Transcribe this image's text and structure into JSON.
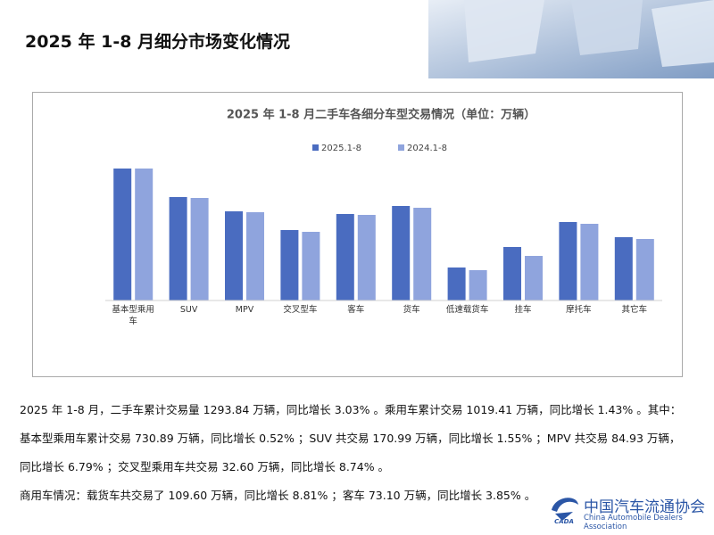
{
  "header": {
    "title": "2025 年 1-8 月细分市场变化情况"
  },
  "chart_data": {
    "type": "bar",
    "title": "2025 年 1-8 月二手车各细分车型交易情况（单位：万辆）",
    "categories": [
      "基本型乘用车",
      "SUV",
      "MPV",
      "交叉型车",
      "客车",
      "货车",
      "低速载货车",
      "挂车",
      "摩托车",
      "其它车"
    ],
    "series": [
      {
        "name": "2025.1-8",
        "color": "#4a6cc0",
        "values": [
          148,
          116,
          100,
          79,
          97,
          106,
          37,
          60,
          88,
          71
        ]
      },
      {
        "name": "2024.1-8",
        "color": "#8fa4dd",
        "values": [
          148,
          115,
          99,
          77,
          96,
          104,
          34,
          50,
          86,
          69
        ]
      }
    ],
    "ylim": [
      0,
      150
    ]
  },
  "paragraphs": [
    "2025 年 1-8 月，二手车累计交易量 1293.84 万辆，同比增长 3.03% 。乘用车累计交易 1019.41 万辆，同比增长 1.43% 。其中：",
    "基本型乘用车累计交易 730.89 万辆，同比增长 0.52% ；SUV 共交易 170.99 万辆，同比增长 1.55% ；MPV 共交易 84.93 万辆，",
    "同比增长 6.79% ；交叉型乘用车共交易 32.60 万辆，同比增长 8.74% 。",
    "商用车情况：载货车共交易了 109.60 万辆，同比增长 8.81% ；客车 73.10 万辆，同比增长 3.85% 。"
  ],
  "logo": {
    "mark": "CADA",
    "name": "中国汽车流通协会",
    "english": "China Automobile Dealers Association"
  }
}
